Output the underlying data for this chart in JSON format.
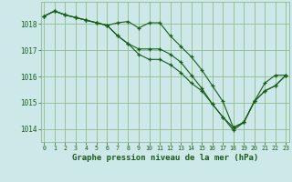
{
  "background_color": "#cce8e8",
  "grid_color": "#90bb90",
  "line_color": "#1a5c1a",
  "marker_color": "#1a5c1a",
  "xlabel": "Graphe pression niveau de la mer (hPa)",
  "xlabel_color": "#1a5c1a",
  "tick_color": "#1a5c1a",
  "ylim": [
    1013.5,
    1018.85
  ],
  "xlim": [
    -0.3,
    23.3
  ],
  "yticks": [
    1014,
    1015,
    1016,
    1017,
    1018
  ],
  "xticks": [
    0,
    1,
    2,
    3,
    4,
    5,
    6,
    7,
    8,
    9,
    10,
    11,
    12,
    13,
    14,
    15,
    16,
    17,
    18,
    19,
    20,
    21,
    22,
    23
  ],
  "series": [
    [
      1018.3,
      1018.5,
      1018.35,
      1018.25,
      1018.15,
      1018.05,
      1017.95,
      1018.05,
      1018.1,
      1017.85,
      1018.05,
      1018.05,
      1017.55,
      1017.15,
      1016.75,
      1016.25,
      1015.65,
      1015.05,
      1014.05,
      1014.25,
      1015.05,
      1015.75,
      1016.05,
      1016.05
    ],
    [
      1018.3,
      1018.5,
      1018.35,
      1018.25,
      1018.15,
      1018.05,
      1017.95,
      1017.55,
      1017.25,
      1017.05,
      1017.05,
      1017.05,
      1016.85,
      1016.55,
      1016.05,
      1015.55,
      1014.95,
      1014.45,
      1014.05,
      1014.25,
      1015.05,
      1015.45,
      1015.65,
      1016.05
    ],
    [
      1018.3,
      1018.5,
      1018.35,
      1018.25,
      1018.15,
      1018.05,
      1017.95,
      1017.55,
      1017.25,
      1016.85,
      1016.65,
      1016.65,
      1016.45,
      1016.15,
      1015.75,
      1015.45,
      1014.95,
      1014.45,
      1013.95,
      1014.25,
      1015.05,
      1015.45,
      1015.65,
      1016.05
    ]
  ]
}
